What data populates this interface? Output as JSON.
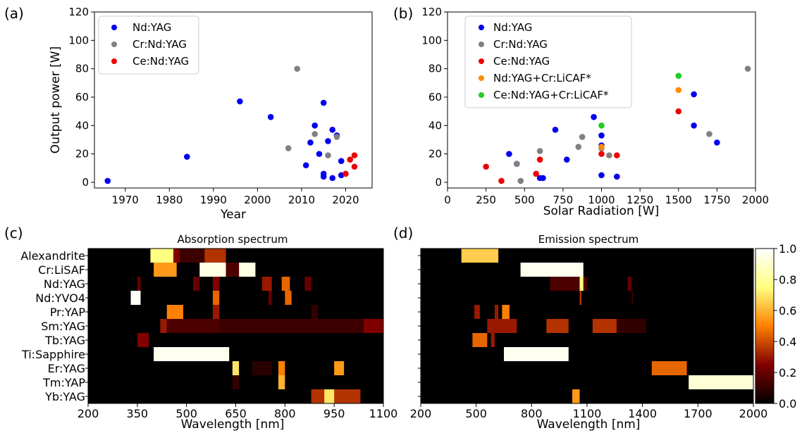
{
  "chart_data": [
    {
      "id": "a",
      "type": "scatter",
      "panel_label": "(a)",
      "xlabel": "Year",
      "ylabel": "Output power [W]",
      "xlim": [
        1963,
        2026
      ],
      "ylim": [
        -4,
        120
      ],
      "xticks": [
        1970,
        1980,
        1990,
        2000,
        2010,
        2020
      ],
      "yticks": [
        0,
        20,
        40,
        60,
        80,
        100,
        120
      ],
      "legend": "top-left",
      "series": [
        {
          "name": "Nd:YAG",
          "color": "#0000ee",
          "points": [
            [
              1966,
              1
            ],
            [
              1984,
              18
            ],
            [
              1996,
              57
            ],
            [
              2003,
              46
            ],
            [
              2011,
              12
            ],
            [
              2012,
              28
            ],
            [
              2013,
              40
            ],
            [
              2014,
              20
            ],
            [
              2015,
              56
            ],
            [
              2015,
              6
            ],
            [
              2015,
              4
            ],
            [
              2016,
              29
            ],
            [
              2017,
              37
            ],
            [
              2017,
              3
            ],
            [
              2018,
              33
            ],
            [
              2019,
              15
            ],
            [
              2019,
              5
            ]
          ]
        },
        {
          "name": "Cr:Nd:YAG",
          "color": "#808080",
          "points": [
            [
              2007,
              24
            ],
            [
              2009,
              80
            ],
            [
              2013,
              34
            ],
            [
              2016,
              19
            ],
            [
              2018,
              32
            ]
          ]
        },
        {
          "name": "Ce:Nd:YAG",
          "color": "#ee0000",
          "points": [
            [
              2020,
              6
            ],
            [
              2021,
              16
            ],
            [
              2022,
              19
            ],
            [
              2022,
              11
            ]
          ]
        }
      ]
    },
    {
      "id": "b",
      "type": "scatter",
      "panel_label": "(b)",
      "xlabel": "Solar Radiation [W]",
      "ylabel": "",
      "xlim": [
        0,
        2000
      ],
      "ylim": [
        -4,
        120
      ],
      "xticks": [
        0,
        250,
        500,
        750,
        1000,
        1250,
        1500,
        1750,
        2000
      ],
      "yticks": [
        0,
        20,
        40,
        60,
        80,
        100,
        120
      ],
      "legend": "top-left",
      "series": [
        {
          "name": "Nd:YAG",
          "color": "#0000ee",
          "points": [
            [
              400,
              20
            ],
            [
              450,
              13
            ],
            [
              600,
              3
            ],
            [
              620,
              3
            ],
            [
              700,
              37
            ],
            [
              775,
              16
            ],
            [
              950,
              46
            ],
            [
              1000,
              33
            ],
            [
              1000,
              26
            ],
            [
              1000,
              5
            ],
            [
              1100,
              4
            ],
            [
              1600,
              62
            ],
            [
              1600,
              40
            ],
            [
              1750,
              28
            ]
          ]
        },
        {
          "name": "Cr:Nd:YAG",
          "color": "#808080",
          "points": [
            [
              450,
              13
            ],
            [
              475,
              1
            ],
            [
              600,
              22
            ],
            [
              850,
              25
            ],
            [
              875,
              32
            ],
            [
              1000,
              24
            ],
            [
              1050,
              19
            ],
            [
              1700,
              34
            ],
            [
              1950,
              80
            ]
          ]
        },
        {
          "name": "Ce:Nd:YAG",
          "color": "#ee0000",
          "points": [
            [
              250,
              11
            ],
            [
              350,
              1
            ],
            [
              575,
              6
            ],
            [
              600,
              16
            ],
            [
              1000,
              20
            ],
            [
              1100,
              19
            ],
            [
              1500,
              50
            ]
          ]
        },
        {
          "name": "Nd:YAG+Cr:LiCAF*",
          "color": "#ff8c00",
          "points": [
            [
              1000,
              25
            ],
            [
              1500,
              65
            ]
          ]
        },
        {
          "name": "Ce:Nd:YAG+Cr:LiCAF*",
          "color": "#22cc22",
          "points": [
            [
              1000,
              40
            ],
            [
              1500,
              75
            ]
          ]
        }
      ]
    },
    {
      "id": "c",
      "type": "heatmap",
      "panel_label": "(c)",
      "title": "Absorption spectrum",
      "xlabel": "Wavelength [nm]",
      "xlim": [
        200,
        1100
      ],
      "xticks": [
        200,
        350,
        500,
        650,
        800,
        950,
        1100
      ],
      "rows": [
        "Alexandrite",
        "Cr:LiSAF",
        "Nd:YAG",
        "Nd:YVO4",
        "Pr:YAP",
        "Sm:YAG",
        "Tb:YAG",
        "Ti:Sapphire",
        "Er:YAG",
        "Tm:YAP",
        "Yb:YAG"
      ],
      "bands": [
        [
          [
            390,
            460,
            0.75
          ],
          [
            460,
            480,
            0.25
          ],
          [
            480,
            555,
            0.12
          ],
          [
            555,
            620,
            0.35
          ]
        ],
        [
          [
            400,
            470,
            0.55
          ],
          [
            540,
            710,
            0.95
          ],
          [
            620,
            660,
            0.15
          ]
        ],
        [
          [
            350,
            360,
            0.2
          ],
          [
            520,
            540,
            0.2
          ],
          [
            580,
            600,
            0.25
          ],
          [
            730,
            760,
            0.3
          ],
          [
            790,
            815,
            0.45
          ],
          [
            860,
            880,
            0.2
          ]
        ],
        [
          [
            330,
            360,
            0.98
          ],
          [
            580,
            600,
            0.45
          ],
          [
            750,
            760,
            0.2
          ],
          [
            800,
            820,
            0.45
          ]
        ],
        [
          [
            440,
            490,
            0.5
          ],
          [
            580,
            600,
            0.3
          ],
          [
            880,
            900,
            0.1
          ]
        ],
        [
          [
            420,
            440,
            0.3
          ],
          [
            440,
            600,
            0.15
          ],
          [
            600,
            1100,
            0.12
          ],
          [
            1040,
            1100,
            0.25
          ]
        ],
        [
          [
            350,
            385,
            0.25
          ]
        ],
        [
          [
            400,
            630,
            0.97
          ]
        ],
        [
          [
            640,
            660,
            0.7
          ],
          [
            780,
            800,
            0.5
          ],
          [
            950,
            980,
            0.55
          ],
          [
            700,
            760,
            0.08
          ]
        ],
        [
          [
            780,
            800,
            0.6
          ],
          [
            640,
            660,
            0.1
          ]
        ],
        [
          [
            880,
            1030,
            0.35
          ],
          [
            920,
            950,
            0.7
          ]
        ]
      ]
    },
    {
      "id": "d",
      "type": "heatmap",
      "panel_label": "(d)",
      "title": "Emission spectrum",
      "xlabel": "Wavelength [nm]",
      "xlim": [
        200,
        2000
      ],
      "xticks": [
        200,
        500,
        800,
        1100,
        1400,
        1700,
        2000
      ],
      "rows": [
        "Alexandrite",
        "Cr:LiSAF",
        "Nd:YAG",
        "Nd:YVO4",
        "Pr:YAP",
        "Sm:YAG",
        "Tb:YAG",
        "Ti:Sapphire",
        "Er:YAG",
        "Tm:YAP",
        "Yb:YAG"
      ],
      "bands": [
        [
          [
            420,
            620,
            0.65
          ]
        ],
        [
          [
            740,
            1080,
            0.97
          ]
        ],
        [
          [
            900,
            1100,
            0.15
          ],
          [
            1060,
            1080,
            0.75
          ],
          [
            1320,
            1340,
            0.2
          ]
        ],
        [
          [
            1060,
            1070,
            0.35
          ],
          [
            1340,
            1350,
            0.1
          ]
        ],
        [
          [
            490,
            520,
            0.3
          ],
          [
            600,
            620,
            0.3
          ],
          [
            640,
            680,
            0.5
          ]
        ],
        [
          [
            560,
            720,
            0.3
          ],
          [
            880,
            1000,
            0.35
          ],
          [
            1130,
            1260,
            0.35
          ],
          [
            1260,
            1420,
            0.1
          ]
        ],
        [
          [
            480,
            560,
            0.45
          ],
          [
            580,
            600,
            0.3
          ]
        ],
        [
          [
            650,
            1000,
            0.97
          ]
        ],
        [
          [
            1450,
            1640,
            0.45
          ]
        ],
        [
          [
            1650,
            2000,
            0.92
          ]
        ],
        [
          [
            1020,
            1060,
            0.55
          ]
        ]
      ]
    }
  ],
  "colorbar": {
    "ticks": [
      "0.0",
      "0.2",
      "0.4",
      "0.6",
      "0.8",
      "1.0"
    ],
    "range": [
      0,
      1
    ],
    "colormap": "afmhot"
  }
}
